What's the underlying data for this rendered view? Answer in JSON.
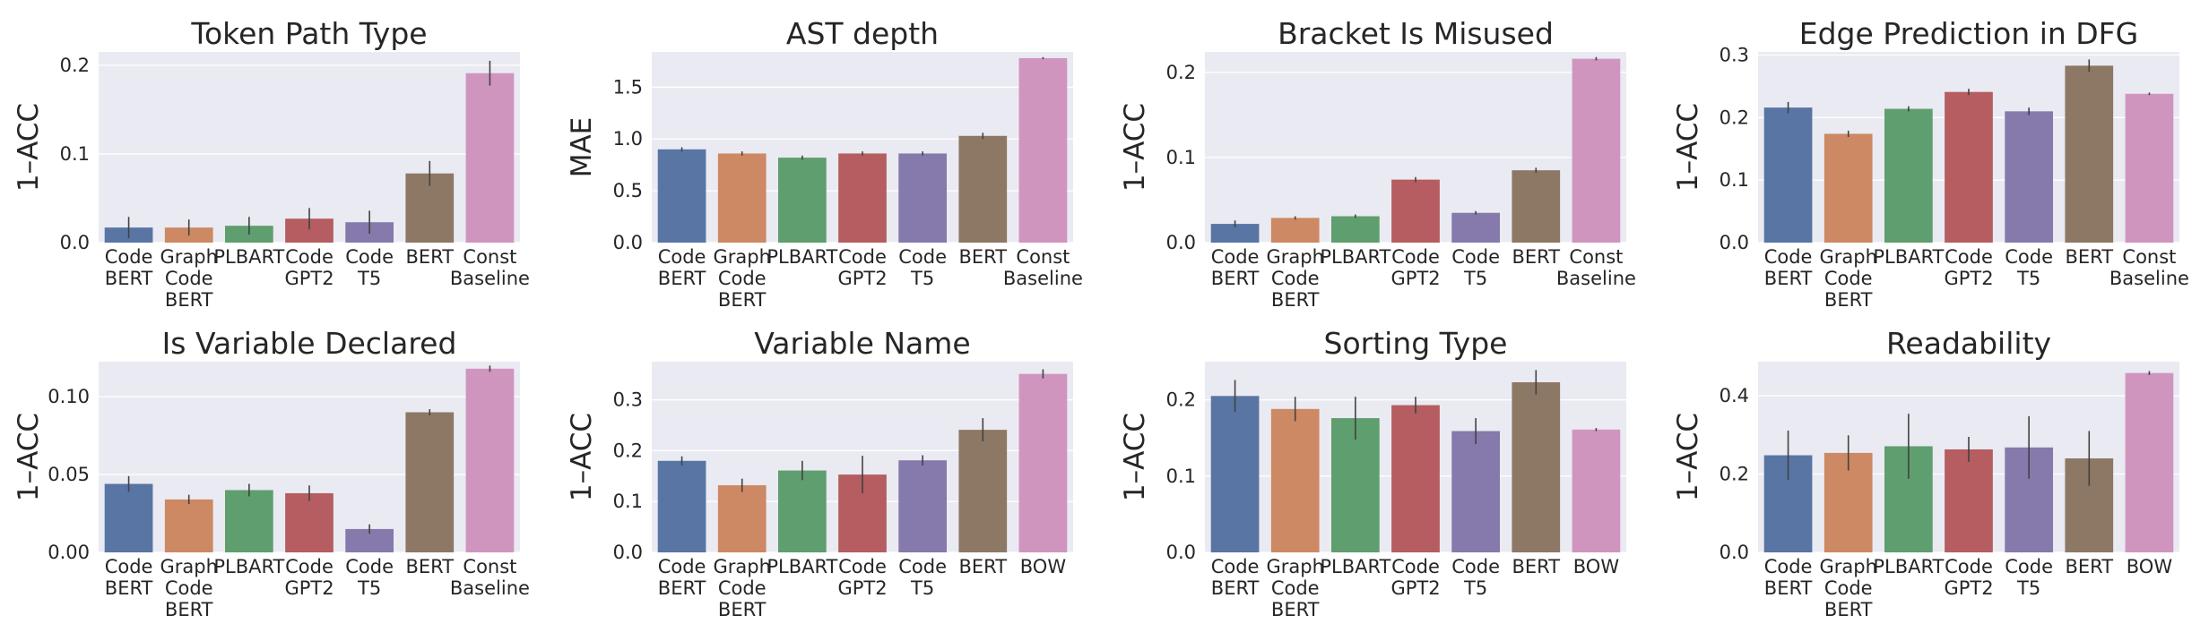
{
  "chart_data": [
    {
      "type": "bar",
      "title": "Token Path Type",
      "ylabel": "1–ACC",
      "ylim": [
        0,
        0.215
      ],
      "yticks": [
        "0.0",
        "0.1",
        "0.2"
      ],
      "categories": [
        [
          "Code",
          "BERT"
        ],
        [
          "Graph",
          "Code",
          "BERT"
        ],
        [
          "PLBART"
        ],
        [
          "Code",
          "GPT2"
        ],
        [
          "Code",
          "T5"
        ],
        [
          "BERT"
        ],
        [
          "Const",
          "Baseline"
        ]
      ],
      "values": [
        0.017,
        0.017,
        0.019,
        0.027,
        0.023,
        0.078,
        0.191
      ],
      "errors": [
        0.012,
        0.009,
        0.01,
        0.012,
        0.013,
        0.014,
        0.014
      ]
    },
    {
      "type": "bar",
      "title": "AST depth",
      "ylabel": "MAE",
      "ylim": [
        0,
        1.84
      ],
      "yticks": [
        "0.0",
        "0.5",
        "1.0",
        "1.5"
      ],
      "categories": [
        [
          "Code",
          "BERT"
        ],
        [
          "Graph",
          "Code",
          "BERT"
        ],
        [
          "PLBART"
        ],
        [
          "Code",
          "GPT2"
        ],
        [
          "Code",
          "T5"
        ],
        [
          "BERT"
        ],
        [
          "Const",
          "Baseline"
        ]
      ],
      "values": [
        0.9,
        0.86,
        0.82,
        0.86,
        0.86,
        1.03,
        1.78
      ],
      "errors": [
        0.02,
        0.02,
        0.02,
        0.02,
        0.02,
        0.03,
        0.01
      ]
    },
    {
      "type": "bar",
      "title": "Bracket Is Misused",
      "ylabel": "1–ACC",
      "ylim": [
        0,
        0.224
      ],
      "yticks": [
        "0.0",
        "0.1",
        "0.2"
      ],
      "categories": [
        [
          "Code",
          "BERT"
        ],
        [
          "Graph",
          "Code",
          "BERT"
        ],
        [
          "PLBART"
        ],
        [
          "Code",
          "GPT2"
        ],
        [
          "Code",
          "T5"
        ],
        [
          "BERT"
        ],
        [
          "Const",
          "Baseline"
        ]
      ],
      "values": [
        0.022,
        0.029,
        0.031,
        0.074,
        0.035,
        0.085,
        0.216
      ],
      "errors": [
        0.004,
        0.002,
        0.002,
        0.003,
        0.002,
        0.003,
        0.002
      ]
    },
    {
      "type": "bar",
      "title": "Edge Prediction in DFG",
      "ylabel": "1–ACC",
      "ylim": [
        0,
        0.305
      ],
      "yticks": [
        "0.0",
        "0.1",
        "0.2",
        "0.3"
      ],
      "categories": [
        [
          "Code",
          "BERT"
        ],
        [
          "Graph",
          "Code",
          "BERT"
        ],
        [
          "PLBART"
        ],
        [
          "Code",
          "GPT2"
        ],
        [
          "Code",
          "T5"
        ],
        [
          "BERT"
        ],
        [
          "Const",
          "Baseline"
        ]
      ],
      "values": [
        0.216,
        0.174,
        0.214,
        0.241,
        0.21,
        0.283,
        0.238
      ],
      "errors": [
        0.009,
        0.005,
        0.004,
        0.005,
        0.006,
        0.01,
        0.002
      ]
    },
    {
      "type": "bar",
      "title": "Is Variable Declared",
      "ylabel": "1–ACC",
      "ylim": [
        0,
        0.1225
      ],
      "yticks": [
        "0.00",
        "0.05",
        "0.10"
      ],
      "categories": [
        [
          "Code",
          "BERT"
        ],
        [
          "Graph",
          "Code",
          "BERT"
        ],
        [
          "PLBART"
        ],
        [
          "Code",
          "GPT2"
        ],
        [
          "Code",
          "T5"
        ],
        [
          "BERT"
        ],
        [
          "Const",
          "Baseline"
        ]
      ],
      "values": [
        0.044,
        0.034,
        0.04,
        0.038,
        0.015,
        0.09,
        0.118
      ],
      "errors": [
        0.005,
        0.003,
        0.004,
        0.005,
        0.003,
        0.002,
        0.002
      ]
    },
    {
      "type": "bar",
      "title": "Variable Name",
      "ylabel": "1–ACC",
      "ylim": [
        0,
        0.375
      ],
      "yticks": [
        "0.0",
        "0.1",
        "0.2",
        "0.3"
      ],
      "categories": [
        [
          "Code",
          "BERT"
        ],
        [
          "Graph",
          "Code",
          "BERT"
        ],
        [
          "PLBART"
        ],
        [
          "Code",
          "GPT2"
        ],
        [
          "Code",
          "T5"
        ],
        [
          "BERT"
        ],
        [
          "BOW"
        ]
      ],
      "values": [
        0.18,
        0.132,
        0.161,
        0.153,
        0.181,
        0.241,
        0.351
      ],
      "errors": [
        0.009,
        0.013,
        0.019,
        0.037,
        0.01,
        0.023,
        0.009
      ]
    },
    {
      "type": "bar",
      "title": "Sorting Type",
      "ylabel": "1–ACC",
      "ylim": [
        0,
        0.25
      ],
      "yticks": [
        "0.0",
        "0.1",
        "0.2"
      ],
      "categories": [
        [
          "Code",
          "BERT"
        ],
        [
          "Graph",
          "Code",
          "BERT"
        ],
        [
          "PLBART"
        ],
        [
          "Code",
          "GPT2"
        ],
        [
          "Code",
          "T5"
        ],
        [
          "BERT"
        ],
        [
          "BOW"
        ]
      ],
      "values": [
        0.205,
        0.188,
        0.176,
        0.193,
        0.159,
        0.223,
        0.161
      ],
      "errors": [
        0.021,
        0.016,
        0.028,
        0.011,
        0.017,
        0.016,
        0.002
      ]
    },
    {
      "type": "bar",
      "title": "Readability",
      "ylabel": "1–ACC",
      "ylim": [
        0,
        0.487
      ],
      "yticks": [
        "0.0",
        "0.2",
        "0.4"
      ],
      "categories": [
        [
          "Code",
          "BERT"
        ],
        [
          "Graph",
          "Code",
          "BERT"
        ],
        [
          "PLBART"
        ],
        [
          "Code",
          "GPT2"
        ],
        [
          "Code",
          "T5"
        ],
        [
          "BERT"
        ],
        [
          "BOW"
        ]
      ],
      "values": [
        0.248,
        0.254,
        0.271,
        0.263,
        0.268,
        0.24,
        0.458
      ],
      "errors": [
        0.063,
        0.045,
        0.083,
        0.032,
        0.08,
        0.07,
        0.005
      ]
    }
  ],
  "palette": [
    "#5875A4",
    "#CC8963",
    "#5F9E6E",
    "#B55D60",
    "#857AAB",
    "#8D7866",
    "#D095BF"
  ]
}
